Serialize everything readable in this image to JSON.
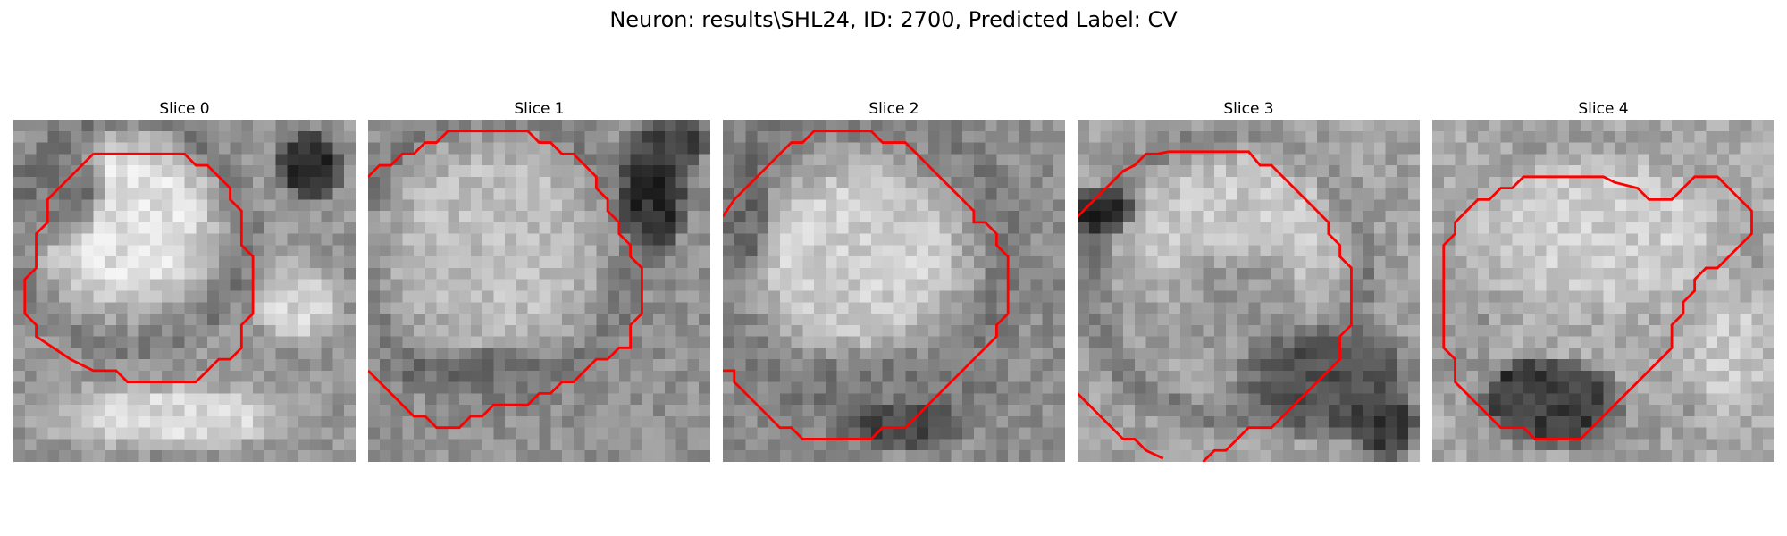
{
  "figure": {
    "title": "Neuron: results\\SHL24, ID: 2700, Predicted Label: CV"
  },
  "panels": [
    {
      "title": "Slice 0"
    },
    {
      "title": "Slice 1"
    },
    {
      "title": "Slice 2"
    },
    {
      "title": "Slice 3"
    },
    {
      "title": "Slice 4"
    }
  ],
  "colors": {
    "contour": "#ff0000",
    "background": "#ffffff"
  }
}
